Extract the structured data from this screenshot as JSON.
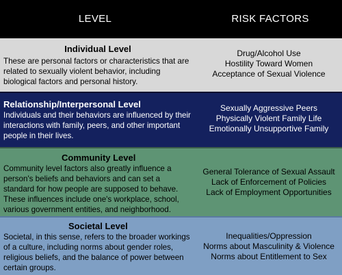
{
  "header": {
    "level": "LEVEL",
    "risk_factors": "RISK FACTORS"
  },
  "rows": [
    {
      "title": "Individual Level",
      "description": "These are personal factors or characteristics that are related to sexually violent behavior, including biological factors and personal history.",
      "factors": [
        "Drug/Alcohol Use",
        "Hostility Toward Women",
        "Acceptance of Sexual Violence"
      ],
      "color": "#d8d8d8"
    },
    {
      "title": "Relationship/Interpersonal Level",
      "description": "Individuals and their behaviors are influenced by their interactions with family, peers, and other important people in their lives.",
      "factors": [
        "Sexually Aggressive Peers",
        "Physically Violent Family Life",
        "Emotionally Unsupportive Family"
      ],
      "color": "#14215e"
    },
    {
      "title": "Community Level",
      "description": "Community level factors also greatly influence a person's beliefs and behaviors and can set a standard for how people are supposed to behave. These influences include one's workplace, school, various government entities, and neighborhood.",
      "factors": [
        "General Tolerance of Sexual Assault",
        "Lack of Enforcement of Policies",
        "Lack of Employment Opportunities"
      ],
      "color": "#5e9474"
    },
    {
      "title": "Societal Level",
      "description": "Societal, in this sense, refers to the broader workings of a culture, including norms about gender roles, religious beliefs, and the balance of power between certain groups.",
      "factors": [
        "Inequalities/Oppression",
        "Norms about Masculinity & Violence",
        "Norms about Entitlement to Sex"
      ],
      "color": "#7f9fc4"
    }
  ]
}
